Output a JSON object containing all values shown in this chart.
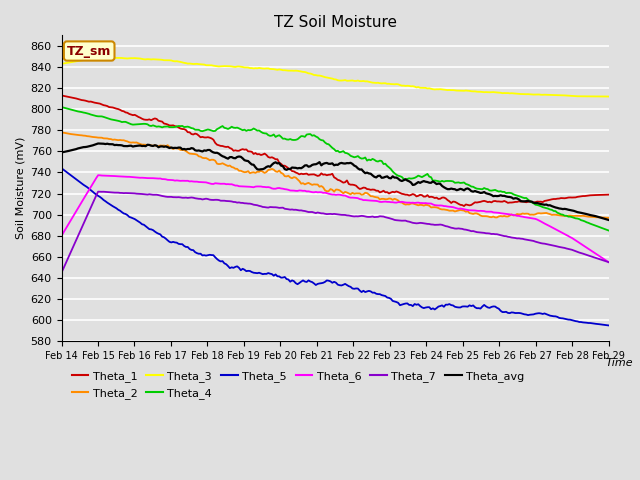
{
  "title": "TZ Soil Moisture",
  "xlabel": "Time",
  "ylabel": "Soil Moisture (mV)",
  "ylim": [
    580,
    870
  ],
  "xlim": [
    0,
    15
  ],
  "x_tick_labels": [
    "Feb 14",
    "Feb 15",
    "Feb 16",
    "Feb 17",
    "Feb 18",
    "Feb 19",
    "Feb 20",
    "Feb 21",
    "Feb 22",
    "Feb 23",
    "Feb 24",
    "Feb 25",
    "Feb 26",
    "Feb 27",
    "Feb 28",
    "Feb 29"
  ],
  "background_color": "#e0e0e0",
  "legend_box_text": "TZ_sm",
  "colors": {
    "Theta_1": "#cc0000",
    "Theta_2": "#ff8c00",
    "Theta_3": "#ffff00",
    "Theta_4": "#00cc00",
    "Theta_5": "#0000cc",
    "Theta_6": "#ff00ff",
    "Theta_7": "#8800cc",
    "Theta_avg": "#000000"
  },
  "curve_data": {
    "Theta_1": {
      "pts": [
        [
          0,
          813
        ],
        [
          1,
          806
        ],
        [
          2,
          797
        ],
        [
          3,
          790
        ],
        [
          4,
          782
        ],
        [
          5,
          775
        ],
        [
          6,
          767
        ],
        [
          7,
          762
        ],
        [
          8,
          755
        ],
        [
          9,
          748
        ],
        [
          10,
          742
        ],
        [
          11,
          737
        ],
        [
          12,
          735
        ],
        [
          13,
          730
        ],
        [
          14,
          724
        ],
        [
          15,
          719
        ]
      ]
    },
    "Theta_2": {
      "pts": [
        [
          0,
          778
        ],
        [
          1,
          773
        ],
        [
          2,
          768
        ],
        [
          3,
          762
        ],
        [
          4,
          756
        ],
        [
          5,
          750
        ],
        [
          6,
          745
        ],
        [
          7,
          739
        ],
        [
          8,
          733
        ],
        [
          9,
          727
        ],
        [
          10,
          722
        ],
        [
          11,
          716
        ],
        [
          12,
          711
        ],
        [
          13,
          707
        ],
        [
          14,
          703
        ],
        [
          15,
          697
        ]
      ]
    },
    "Theta_3": {
      "pts": [
        [
          0,
          843
        ],
        [
          1,
          849
        ],
        [
          2,
          849
        ],
        [
          3,
          847
        ],
        [
          4,
          843
        ],
        [
          5,
          840
        ],
        [
          6,
          837
        ],
        [
          7,
          833
        ],
        [
          8,
          829
        ],
        [
          9,
          826
        ],
        [
          10,
          822
        ],
        [
          11,
          820
        ],
        [
          12,
          817
        ],
        [
          13,
          815
        ],
        [
          14,
          813
        ],
        [
          15,
          812
        ]
      ]
    },
    "Theta_4": {
      "pts": [
        [
          0,
          802
        ],
        [
          1,
          793
        ],
        [
          2,
          784
        ],
        [
          3,
          776
        ],
        [
          4,
          768
        ],
        [
          5,
          760
        ],
        [
          6,
          752
        ],
        [
          7,
          744
        ],
        [
          8,
          737
        ],
        [
          9,
          730
        ],
        [
          10,
          723
        ],
        [
          11,
          717
        ],
        [
          12,
          711
        ],
        [
          13,
          703
        ],
        [
          14,
          695
        ],
        [
          15,
          685
        ]
      ]
    },
    "Theta_5": {
      "pts": [
        [
          0,
          744
        ],
        [
          1,
          718
        ],
        [
          2,
          693
        ],
        [
          3,
          668
        ],
        [
          4,
          654
        ],
        [
          5,
          642
        ],
        [
          6,
          635
        ],
        [
          7,
          630
        ],
        [
          8,
          625
        ],
        [
          9,
          622
        ],
        [
          10,
          618
        ],
        [
          11,
          613
        ],
        [
          12,
          608
        ],
        [
          13,
          603
        ],
        [
          14,
          597
        ],
        [
          15,
          595
        ]
      ]
    },
    "Theta_6": {
      "pts": [
        [
          0,
          680
        ],
        [
          1,
          738
        ],
        [
          2,
          737
        ],
        [
          3,
          736
        ],
        [
          4,
          733
        ],
        [
          5,
          730
        ],
        [
          6,
          727
        ],
        [
          7,
          724
        ],
        [
          8,
          721
        ],
        [
          9,
          717
        ],
        [
          10,
          714
        ],
        [
          11,
          710
        ],
        [
          12,
          706
        ],
        [
          13,
          700
        ],
        [
          14,
          680
        ],
        [
          15,
          655
        ]
      ]
    },
    "Theta_7": {
      "pts": [
        [
          0,
          645
        ],
        [
          1,
          722
        ],
        [
          2,
          721
        ],
        [
          3,
          718
        ],
        [
          4,
          715
        ],
        [
          5,
          712
        ],
        [
          6,
          709
        ],
        [
          7,
          706
        ],
        [
          8,
          703
        ],
        [
          9,
          700
        ],
        [
          10,
          695
        ],
        [
          11,
          690
        ],
        [
          12,
          685
        ],
        [
          13,
          678
        ],
        [
          14,
          668
        ],
        [
          15,
          655
        ]
      ]
    },
    "Theta_avg": {
      "pts": [
        [
          0,
          759
        ],
        [
          1,
          766
        ],
        [
          2,
          763
        ],
        [
          3,
          759
        ],
        [
          4,
          754
        ],
        [
          5,
          749
        ],
        [
          6,
          744
        ],
        [
          7,
          739
        ],
        [
          8,
          733
        ],
        [
          9,
          727
        ],
        [
          10,
          721
        ],
        [
          11,
          715
        ],
        [
          12,
          710
        ],
        [
          13,
          705
        ],
        [
          14,
          700
        ],
        [
          15,
          695
        ]
      ]
    }
  }
}
